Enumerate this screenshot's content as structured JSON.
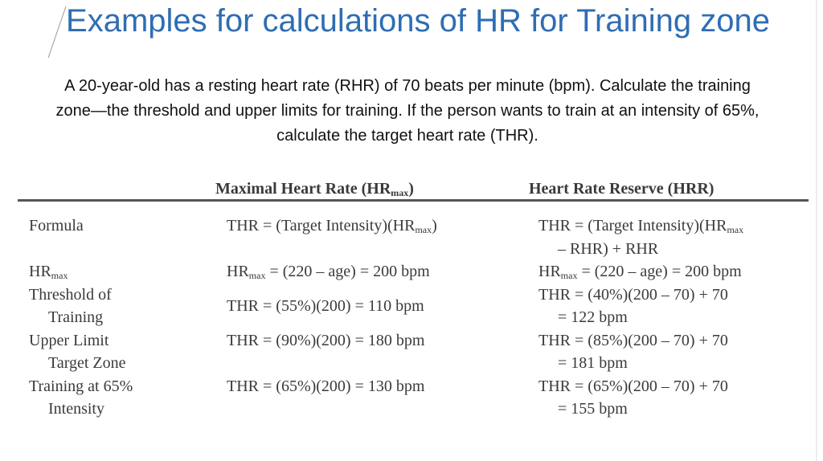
{
  "title": "Examples for calculations of HR for Training zone",
  "intro": "A 20-year-old has a resting heart rate (RHR) of 70 beats per minute (bpm). Calculate the training zone—the threshold and upper limits for training. If the person wants to train at an intensity of 65%, calculate the target heart rate (THR).",
  "table": {
    "header": [
      [
        {
          "t": "Maximal Heart Rate (HR"
        },
        {
          "sub": "max"
        },
        {
          "t": ")"
        }
      ],
      [
        {
          "t": "Heart Rate Reserve (HRR)"
        }
      ]
    ],
    "rows": [
      [
        [
          [
            {
              "t": "Formula"
            }
          ]
        ],
        [
          [
            {
              "t": "THR = (Target Intensity)(HR"
            },
            {
              "sub": "max"
            },
            {
              "t": ")"
            }
          ]
        ],
        [
          [
            {
              "t": "THR = (Target Intensity)(HR"
            },
            {
              "sub": "max"
            }
          ],
          [
            {
              "t": "– RHR) + RHR"
            }
          ]
        ]
      ],
      [
        [
          [
            {
              "t": "HR"
            },
            {
              "sub": "max"
            }
          ]
        ],
        [
          [
            {
              "t": "HR"
            },
            {
              "sub": "max"
            },
            {
              "t": " = (220 – age) = 200 bpm"
            }
          ]
        ],
        [
          [
            {
              "t": "HR"
            },
            {
              "sub": "max"
            },
            {
              "t": " = (220 – age) = 200 bpm"
            }
          ]
        ]
      ],
      [
        [
          [
            {
              "t": "Threshold of"
            }
          ],
          [
            {
              "t": "Training"
            }
          ]
        ],
        [
          [
            {
              "t": "THR = (55%)(200) = 110 bpm"
            }
          ]
        ],
        [
          [
            {
              "t": "THR = (40%)(200 – 70) + 70"
            }
          ],
          [
            {
              "t": "= 122 bpm"
            }
          ]
        ]
      ],
      [
        [
          [
            {
              "t": "Upper Limit"
            }
          ],
          [
            {
              "t": "Target Zone"
            }
          ]
        ],
        [
          [
            {
              "t": "THR = (90%)(200) = 180 bpm"
            }
          ]
        ],
        [
          [
            {
              "t": "THR = (85%)(200 – 70) + 70"
            }
          ],
          [
            {
              "t": "= 181 bpm"
            }
          ]
        ]
      ],
      [
        [
          [
            {
              "t": "Training at 65%"
            }
          ],
          [
            {
              "t": "Intensity"
            }
          ]
        ],
        [
          [
            {
              "t": "THR = (65%)(200) = 130 bpm"
            }
          ]
        ],
        [
          [
            {
              "t": "THR = (65%)(200 – 70) + 70"
            }
          ],
          [
            {
              "t": "= 155 bpm"
            }
          ]
        ]
      ]
    ]
  }
}
